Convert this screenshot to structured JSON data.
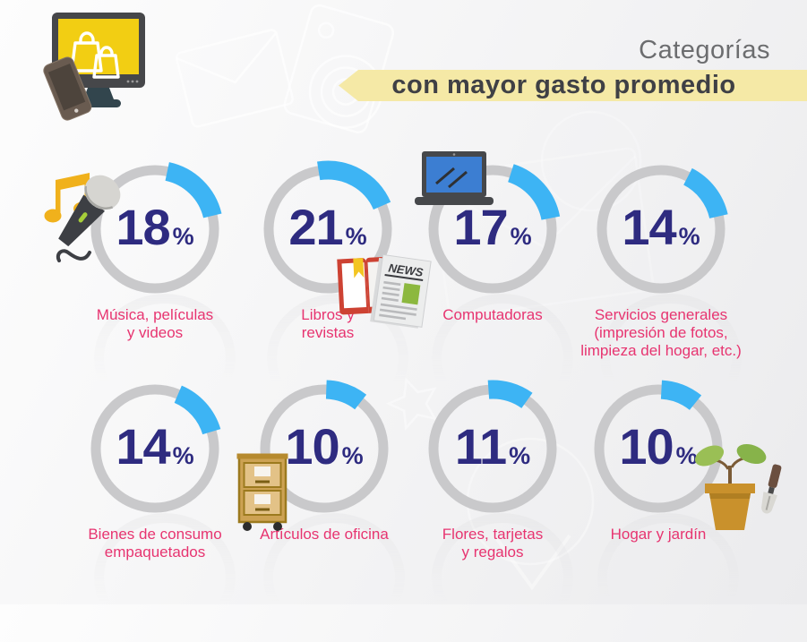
{
  "colors": {
    "accent_blue": "#3db4f4",
    "ring_gray": "#c9c9cb",
    "value_indigo": "#2e2b80",
    "label_pink": "#e73470",
    "banner_yellow": "#f5e9a6",
    "banner_text": "#3f4045",
    "title_gray": "#6c6d6f",
    "logo_screen_yellow": "#f2ce13"
  },
  "header": {
    "title_top": "Categorías",
    "title_banner": "con mayor gasto promedio",
    "logo_icon": "online-shopping-devices-logo"
  },
  "chart_data": {
    "type": "donut-gauge-grid",
    "title": "Categorías con mayor gasto promedio",
    "unit": "%",
    "value_range": [
      0,
      100
    ],
    "legend": "none",
    "items": [
      {
        "label": "Música, películas\ny videos",
        "value": 18,
        "arc_start_deg": 12,
        "icon": "music-note-microphone-icon"
      },
      {
        "label": "Libros y\nrevistas",
        "value": 21,
        "arc_start_deg": -9,
        "icon": "book-newspaper-icon"
      },
      {
        "label": "Computadoras",
        "value": 17,
        "arc_start_deg": 18,
        "icon": "laptop-icon"
      },
      {
        "label": "Servicios generales\n(impresión de fotos,\nlimpieza del hogar, etc.)",
        "value": 14,
        "arc_start_deg": 27,
        "icon": null
      },
      {
        "label": "Bienes de consumo\nempaquetados",
        "value": 14,
        "arc_start_deg": 23,
        "icon": null
      },
      {
        "label": "Artículos de oficina",
        "value": 10,
        "arc_start_deg": 2,
        "icon": "file-cabinet-icon"
      },
      {
        "label": "Flores, tarjetas\ny regalos",
        "value": 11,
        "arc_start_deg": -4,
        "icon": null
      },
      {
        "label": "Hogar y jardín",
        "value": 10,
        "arc_start_deg": 3,
        "icon": "potted-plant-trowel-icon"
      }
    ],
    "newspaper_headline": "NEWS"
  }
}
